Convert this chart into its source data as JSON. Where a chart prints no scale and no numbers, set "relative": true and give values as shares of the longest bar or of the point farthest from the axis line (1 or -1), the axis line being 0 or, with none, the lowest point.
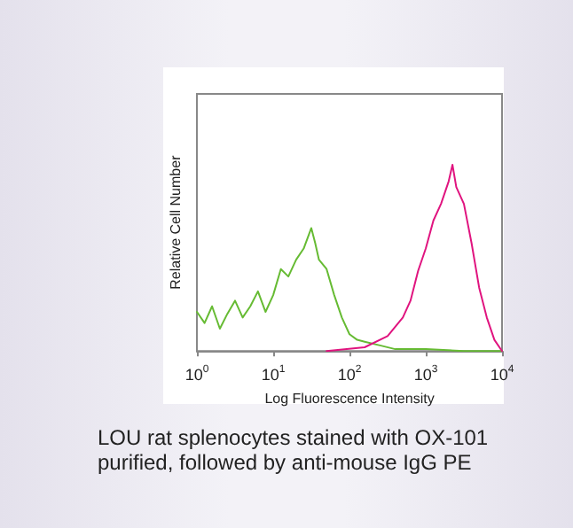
{
  "chart_data": {
    "type": "line",
    "relative": true,
    "log": "x",
    "xlabel": "Log Fluorescence Intensity",
    "ylabel": "Relative Cell Number",
    "xlim": [
      1,
      10000
    ],
    "xticks": [
      {
        "value": 1,
        "label": "10$^{0}$"
      },
      {
        "value": 10,
        "label": "10$^{1}$"
      },
      {
        "value": 100,
        "label": "10$^{2}$"
      },
      {
        "value": 1000,
        "label": "10$^{3}$"
      },
      {
        "value": 10000,
        "label": "10$^{4}$"
      }
    ],
    "grid": false,
    "marker": "none",
    "line_style": "solid",
    "series": [
      {
        "color": "#66bb33",
        "x": [
          1,
          1.26,
          1.58,
          2,
          2.51,
          3.16,
          3.98,
          5.01,
          6.31,
          7.94,
          10,
          12.6,
          15.8,
          20,
          25.1,
          31.6,
          35.5,
          39.8,
          50.1,
          63.1,
          79.4,
          100,
          126,
          158,
          251,
          398,
          1000,
          3162,
          10000
        ],
        "values": [
          0.21,
          0.15,
          0.24,
          0.12,
          0.2,
          0.27,
          0.18,
          0.24,
          0.32,
          0.21,
          0.3,
          0.44,
          0.4,
          0.49,
          0.55,
          0.66,
          0.58,
          0.49,
          0.44,
          0.3,
          0.18,
          0.09,
          0.06,
          0.05,
          0.03,
          0.01,
          0.01,
          0,
          0
        ]
      },
      {
        "color": "#e0147f",
        "x": [
          50.1,
          158,
          316,
          501,
          631,
          794,
          1000,
          1259,
          1585,
          1995,
          2239,
          2512,
          3162,
          3981,
          5012,
          6310,
          7943,
          10000
        ],
        "values": [
          0,
          0.02,
          0.08,
          0.18,
          0.27,
          0.43,
          0.55,
          0.7,
          0.79,
          0.91,
          1,
          0.88,
          0.79,
          0.58,
          0.34,
          0.18,
          0.06,
          0
        ]
      }
    ],
    "annotations": [
      "LOU rat splenocytes stained with OX-101 purified, followed by anti-mouse IgG PE"
    ]
  }
}
